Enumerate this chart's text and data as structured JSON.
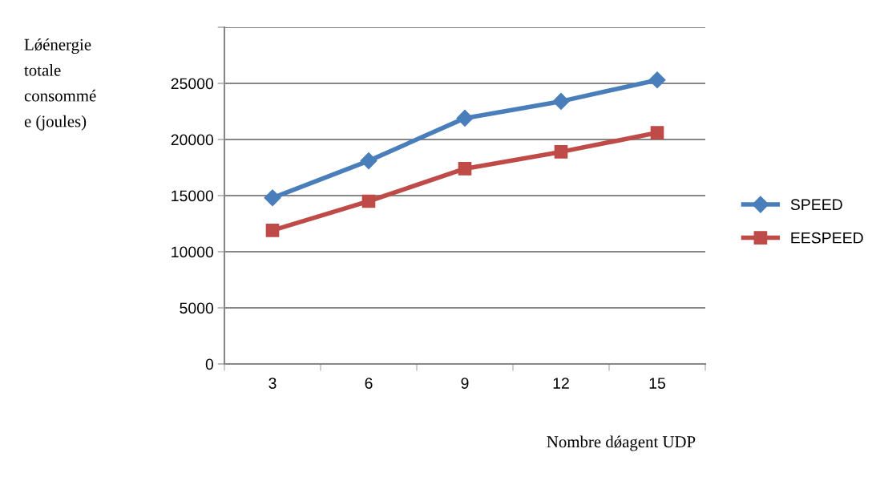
{
  "chart_data": {
    "type": "line",
    "xlabel": "Nombre dǿagent UDP",
    "ylabel": "Lǿénergie\ntotale\nconsommé\ne (joules)",
    "categories": [
      "3",
      "6",
      "9",
      "12",
      "15"
    ],
    "series": [
      {
        "name": "SPEED",
        "color": "#4a7ebb",
        "marker": "diamond",
        "values": [
          14800,
          18100,
          21900,
          23400,
          25300
        ]
      },
      {
        "name": "EESPEED",
        "color": "#be4b48",
        "marker": "square",
        "values": [
          11900,
          14500,
          17400,
          18900,
          20600
        ]
      }
    ],
    "ylim": [
      0,
      30000
    ],
    "yticks": [
      0,
      5000,
      10000,
      15000,
      20000,
      25000,
      {
        "value": 30000,
        "label": null
      }
    ],
    "grid": "y",
    "legend": "right",
    "line_style": "solid"
  }
}
